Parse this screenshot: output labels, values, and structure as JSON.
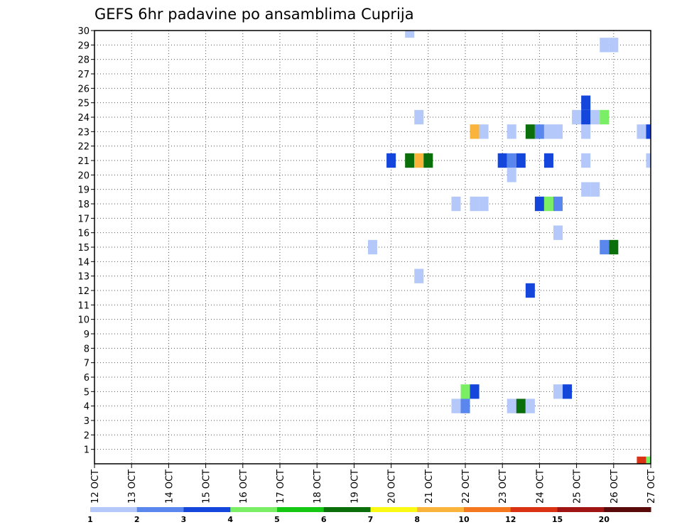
{
  "chart_data": {
    "type": "heatmap",
    "title": "GEFS 6hr padavine po ansamblima Cuprija",
    "x_ticks": [
      "12 OCT",
      "13 OCT",
      "14 OCT",
      "15 OCT",
      "16 OCT",
      "17 OCT",
      "18 OCT",
      "19 OCT",
      "20 OCT",
      "21 OCT",
      "22 OCT",
      "23 OCT",
      "24 OCT",
      "25 OCT",
      "26 OCT",
      "27 OCT"
    ],
    "x_range": [
      "2019-10-12 00Z",
      "2019-10-27 00Z"
    ],
    "x_step_hours": 6,
    "y_ticks": [
      1,
      2,
      3,
      4,
      5,
      6,
      7,
      8,
      9,
      10,
      11,
      12,
      13,
      14,
      15,
      16,
      17,
      18,
      19,
      20,
      21,
      22,
      23,
      24,
      25,
      26,
      27,
      28,
      29,
      30
    ],
    "ylim": [
      0,
      30
    ],
    "grid": true,
    "colorbar": {
      "labels": [
        "1",
        "2",
        "3",
        "4",
        "5",
        "6",
        "7",
        "8",
        "10",
        "12",
        "15",
        "20"
      ],
      "colors": [
        "#b4c8fa",
        "#5a87ee",
        "#1446dc",
        "#7aee64",
        "#14c814",
        "#0a6e0a",
        "#fafa14",
        "#fab43c",
        "#f5781e",
        "#dc3214",
        "#a01414",
        "#5a0a0a"
      ]
    },
    "cells": [
      {
        "x": "2019-10-20 00Z",
        "member": 21,
        "color": "#1446dc"
      },
      {
        "x": "2019-10-20 12Z",
        "member": 21,
        "color": "#0a6e0a"
      },
      {
        "x": "2019-10-20 18Z",
        "member": 21,
        "color": "#fab43c"
      },
      {
        "x": "2019-10-21 00Z",
        "member": 21,
        "color": "#0a6e0a"
      },
      {
        "x": "2019-10-23 00Z",
        "member": 21,
        "color": "#1446dc"
      },
      {
        "x": "2019-10-23 06Z",
        "member": 21,
        "color": "#5a87ee"
      },
      {
        "x": "2019-10-23 12Z",
        "member": 21,
        "color": "#1446dc"
      },
      {
        "x": "2019-10-24 06Z",
        "member": 21,
        "color": "#1446dc"
      },
      {
        "x": "2019-10-25 06Z",
        "member": 21,
        "color": "#b4c8fa"
      },
      {
        "x": "2019-10-27 00Z",
        "member": 21,
        "color": "#b4c8fa"
      },
      {
        "x": "2019-10-22 06Z",
        "member": 23,
        "color": "#fab43c"
      },
      {
        "x": "2019-10-22 12Z",
        "member": 23,
        "color": "#b4c8fa"
      },
      {
        "x": "2019-10-23 06Z",
        "member": 23,
        "color": "#b4c8fa"
      },
      {
        "x": "2019-10-23 18Z",
        "member": 23,
        "color": "#0a6e0a"
      },
      {
        "x": "2019-10-24 00Z",
        "member": 23,
        "color": "#5a87ee"
      },
      {
        "x": "2019-10-24 06Z",
        "member": 23,
        "color": "#b4c8fa"
      },
      {
        "x": "2019-10-24 12Z",
        "member": 23,
        "color": "#b4c8fa"
      },
      {
        "x": "2019-10-25 06Z",
        "member": 23,
        "color": "#b4c8fa"
      },
      {
        "x": "2019-10-26 18Z",
        "member": 23,
        "color": "#b4c8fa"
      },
      {
        "x": "2019-10-27 00Z",
        "member": 23,
        "color": "#1446dc"
      },
      {
        "x": "2019-10-20 18Z",
        "member": 24,
        "color": "#b4c8fa"
      },
      {
        "x": "2019-10-25 00Z",
        "member": 24,
        "color": "#b4c8fa"
      },
      {
        "x": "2019-10-25 06Z",
        "member": 24,
        "color": "#1446dc"
      },
      {
        "x": "2019-10-25 12Z",
        "member": 24,
        "color": "#b4c8fa"
      },
      {
        "x": "2019-10-25 18Z",
        "member": 24,
        "color": "#7aee64"
      },
      {
        "x": "2019-10-25 06Z",
        "member": 25,
        "color": "#1446dc"
      },
      {
        "x": "2019-10-20 12Z",
        "member": 30,
        "color": "#b4c8fa"
      },
      {
        "x": "2019-10-25 18Z",
        "member": 29,
        "color": "#b4c8fa"
      },
      {
        "x": "2019-10-26 00Z",
        "member": 29,
        "color": "#b4c8fa"
      },
      {
        "x": "2019-10-23 06Z",
        "member": 20,
        "color": "#b4c8fa"
      },
      {
        "x": "2019-10-25 06Z",
        "member": 19,
        "color": "#b4c8fa"
      },
      {
        "x": "2019-10-25 12Z",
        "member": 19,
        "color": "#b4c8fa"
      },
      {
        "x": "2019-10-21 18Z",
        "member": 18,
        "color": "#b4c8fa"
      },
      {
        "x": "2019-10-22 06Z",
        "member": 18,
        "color": "#b4c8fa"
      },
      {
        "x": "2019-10-22 12Z",
        "member": 18,
        "color": "#b4c8fa"
      },
      {
        "x": "2019-10-24 00Z",
        "member": 18,
        "color": "#1446dc"
      },
      {
        "x": "2019-10-24 06Z",
        "member": 18,
        "color": "#7aee64"
      },
      {
        "x": "2019-10-24 12Z",
        "member": 18,
        "color": "#5a87ee"
      },
      {
        "x": "2019-10-24 12Z",
        "member": 16,
        "color": "#b4c8fa"
      },
      {
        "x": "2019-10-19 12Z",
        "member": 15,
        "color": "#b4c8fa"
      },
      {
        "x": "2019-10-25 18Z",
        "member": 15,
        "color": "#5a87ee"
      },
      {
        "x": "2019-10-26 00Z",
        "member": 15,
        "color": "#0a6e0a"
      },
      {
        "x": "2019-10-20 18Z",
        "member": 13,
        "color": "#b4c8fa"
      },
      {
        "x": "2019-10-23 18Z",
        "member": 12,
        "color": "#1446dc"
      },
      {
        "x": "2019-10-22 00Z",
        "member": 5,
        "color": "#7aee64"
      },
      {
        "x": "2019-10-22 06Z",
        "member": 5,
        "color": "#1446dc"
      },
      {
        "x": "2019-10-24 12Z",
        "member": 5,
        "color": "#b4c8fa"
      },
      {
        "x": "2019-10-24 18Z",
        "member": 5,
        "color": "#1446dc"
      },
      {
        "x": "2019-10-21 18Z",
        "member": 4,
        "color": "#b4c8fa"
      },
      {
        "x": "2019-10-22 00Z",
        "member": 4,
        "color": "#5a87ee"
      },
      {
        "x": "2019-10-23 06Z",
        "member": 4,
        "color": "#b4c8fa"
      },
      {
        "x": "2019-10-23 12Z",
        "member": 4,
        "color": "#0a6e0a"
      },
      {
        "x": "2019-10-23 18Z",
        "member": 4,
        "color": "#b4c8fa"
      },
      {
        "x": "2019-10-26 18Z",
        "member": 0,
        "color": "#dc3214"
      },
      {
        "x": "2019-10-27 00Z",
        "member": 0,
        "color": "#7aee64"
      }
    ]
  }
}
